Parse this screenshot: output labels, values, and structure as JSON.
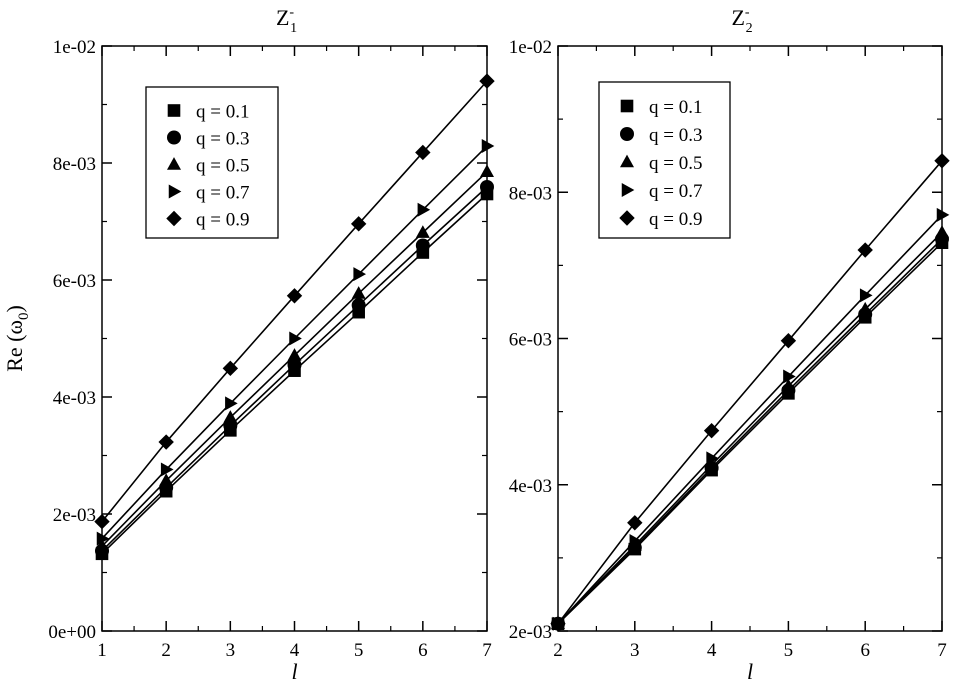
{
  "chart_data": [
    {
      "type": "line",
      "title": "Z-1",
      "title_main": "Z",
      "title_sup": "-",
      "title_sub": "1",
      "xlabel": "l",
      "ylabel": "Re (ω0)",
      "ylabel_main": "Re (ω",
      "ylabel_sub": "0",
      "ylabel_close": ")",
      "xlim": [
        1,
        7
      ],
      "ylim": [
        0,
        0.01
      ],
      "x_ticks": [
        "1",
        "2",
        "3",
        "4",
        "5",
        "6",
        "7"
      ],
      "y_ticks": [
        "0e+00",
        "2e-03",
        "4e-03",
        "6e-03",
        "8e-03",
        "1e-02"
      ],
      "legend_position": "top-left",
      "grid": false,
      "x": [
        1,
        2,
        3,
        4,
        5,
        6,
        7
      ],
      "series": [
        {
          "name": "q = 0.1",
          "marker": "square",
          "values": [
            0.00132,
            0.00239,
            0.00343,
            0.00445,
            0.00545,
            0.00647,
            0.00747
          ]
        },
        {
          "name": "q = 0.3",
          "marker": "circle",
          "values": [
            0.00137,
            0.00245,
            0.00351,
            0.00455,
            0.00557,
            0.00659,
            0.00759
          ]
        },
        {
          "name": "q = 0.5",
          "marker": "triangle-up",
          "values": [
            0.00145,
            0.00257,
            0.00365,
            0.00471,
            0.00577,
            0.00681,
            0.00785
          ]
        },
        {
          "name": "q = 0.7",
          "marker": "triangle-right",
          "values": [
            0.00158,
            0.00276,
            0.00389,
            0.005,
            0.0061,
            0.0072,
            0.00829
          ]
        },
        {
          "name": "q = 0.9",
          "marker": "diamond",
          "values": [
            0.00187,
            0.00323,
            0.00449,
            0.00573,
            0.00696,
            0.00818,
            0.0094
          ]
        }
      ]
    },
    {
      "type": "line",
      "title": "Z-2",
      "title_main": "Z",
      "title_sup": "-",
      "title_sub": "2",
      "xlabel": "l",
      "xlim": [
        2,
        7
      ],
      "ylim": [
        0.002,
        0.01
      ],
      "x_ticks": [
        "2",
        "3",
        "4",
        "5",
        "6",
        "7"
      ],
      "y_ticks": [
        "2e-03",
        "4e-03",
        "6e-03",
        "8e-03",
        "1e-02"
      ],
      "legend_position": "top-left",
      "grid": false,
      "x": [
        2,
        3,
        4,
        5,
        6,
        7
      ],
      "series": [
        {
          "name": "q = 0.1",
          "marker": "square",
          "values": [
            0.0021,
            0.00312,
            0.0042,
            0.00525,
            0.00629,
            0.00731
          ]
        },
        {
          "name": "q = 0.3",
          "marker": "circle",
          "values": [
            0.0021,
            0.00314,
            0.00423,
            0.00529,
            0.00633,
            0.00736
          ]
        },
        {
          "name": "q = 0.5",
          "marker": "triangle-up",
          "values": [
            0.0021,
            0.00317,
            0.00427,
            0.00535,
            0.0064,
            0.00745
          ]
        },
        {
          "name": "q = 0.7",
          "marker": "triangle-right",
          "values": [
            0.0021,
            0.00323,
            0.00436,
            0.00548,
            0.00659,
            0.00769
          ]
        },
        {
          "name": "q = 0.9",
          "marker": "diamond",
          "values": [
            0.0021,
            0.00348,
            0.00474,
            0.00597,
            0.00721,
            0.00843
          ]
        }
      ]
    }
  ]
}
